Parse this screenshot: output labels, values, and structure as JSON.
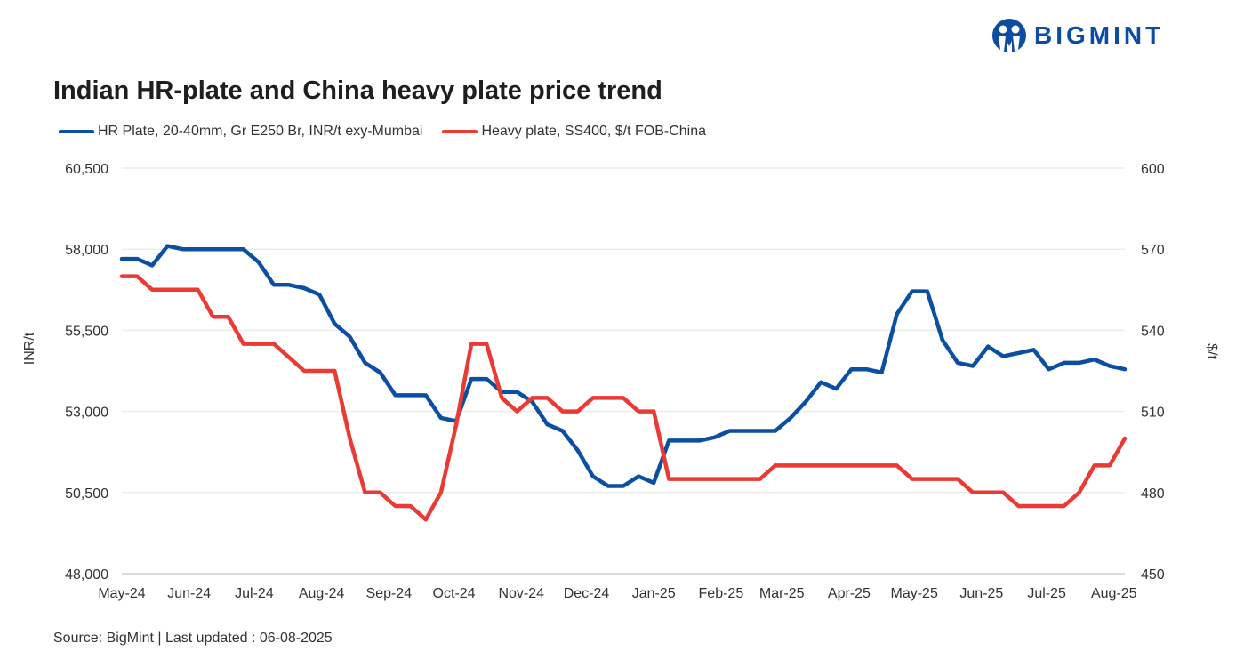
{
  "brand": {
    "name": "BIGMINT",
    "color": "#0b4da2"
  },
  "footer": {
    "source": "Source: BigMint | Last updated : 06-08-2025"
  },
  "chart_data": {
    "type": "line",
    "title": "Indian HR-plate and China heavy plate price trend",
    "ylabel_left": "INR/t",
    "ylabel_right": "$/t",
    "ylim_left": [
      48000,
      60500
    ],
    "ylim_right": [
      450,
      600
    ],
    "yticks_left": [
      "48,000",
      "50,500",
      "53,000",
      "55,500",
      "58,000",
      "60,500"
    ],
    "yticks_right": [
      "450",
      "480",
      "510",
      "540",
      "570",
      "600"
    ],
    "xticks": [
      {
        "date": "2024-05-01",
        "label": "May-24"
      },
      {
        "date": "2024-06-01",
        "label": "Jun-24"
      },
      {
        "date": "2024-07-01",
        "label": "Jul-24"
      },
      {
        "date": "2024-08-01",
        "label": "Aug-24"
      },
      {
        "date": "2024-09-01",
        "label": "Sep-24"
      },
      {
        "date": "2024-10-01",
        "label": "Oct-24"
      },
      {
        "date": "2024-11-01",
        "label": "Nov-24"
      },
      {
        "date": "2024-12-01",
        "label": "Dec-24"
      },
      {
        "date": "2025-01-01",
        "label": "Jan-25"
      },
      {
        "date": "2025-02-01",
        "label": "Feb-25"
      },
      {
        "date": "2025-03-01",
        "label": "Mar-25"
      },
      {
        "date": "2025-04-01",
        "label": "Apr-25"
      },
      {
        "date": "2025-05-01",
        "label": "May-25"
      },
      {
        "date": "2025-06-01",
        "label": "Jun-25"
      },
      {
        "date": "2025-07-01",
        "label": "Jul-25"
      },
      {
        "date": "2025-08-01",
        "label": "Aug-25"
      }
    ],
    "grid": true,
    "legend_position": "top-left",
    "x": [
      "2024-05-01",
      "2024-05-08",
      "2024-05-15",
      "2024-05-22",
      "2024-05-29",
      "2024-06-05",
      "2024-06-12",
      "2024-06-19",
      "2024-06-26",
      "2024-07-03",
      "2024-07-10",
      "2024-07-17",
      "2024-07-24",
      "2024-07-31",
      "2024-08-07",
      "2024-08-14",
      "2024-08-21",
      "2024-08-28",
      "2024-09-04",
      "2024-09-11",
      "2024-09-18",
      "2024-09-25",
      "2024-10-02",
      "2024-10-09",
      "2024-10-16",
      "2024-10-23",
      "2024-10-30",
      "2024-11-06",
      "2024-11-13",
      "2024-11-20",
      "2024-11-27",
      "2024-12-04",
      "2024-12-11",
      "2024-12-18",
      "2024-12-25",
      "2025-01-01",
      "2025-01-08",
      "2025-01-15",
      "2025-01-22",
      "2025-01-29",
      "2025-02-05",
      "2025-02-12",
      "2025-02-19",
      "2025-02-26",
      "2025-03-05",
      "2025-03-12",
      "2025-03-19",
      "2025-03-26",
      "2025-04-02",
      "2025-04-09",
      "2025-04-16",
      "2025-04-23",
      "2025-04-30",
      "2025-05-07",
      "2025-05-14",
      "2025-05-21",
      "2025-05-28",
      "2025-06-04",
      "2025-06-11",
      "2025-06-18",
      "2025-06-25",
      "2025-07-02",
      "2025-07-09",
      "2025-07-16",
      "2025-07-23",
      "2025-07-30",
      "2025-08-06"
    ],
    "series": [
      {
        "name": "HR Plate, 20-40mm, Gr E250 Br, INR/t exy-Mumbai",
        "axis": "left",
        "color": "#0b4fa3",
        "values": [
          57700,
          57700,
          57500,
          58100,
          58000,
          58000,
          58000,
          58000,
          58000,
          57600,
          56900,
          56900,
          56800,
          56600,
          55700,
          55300,
          54500,
          54200,
          53500,
          53500,
          53500,
          52800,
          52700,
          54000,
          54000,
          53600,
          53600,
          53300,
          52600,
          52400,
          51800,
          51000,
          50700,
          50700,
          51000,
          50800,
          52100,
          52100,
          52100,
          52200,
          52400,
          52400,
          52400,
          52400,
          52800,
          53300,
          53900,
          53700,
          54300,
          54300,
          54200,
          56000,
          56700,
          56700,
          55200,
          54500,
          54400,
          55000,
          54700,
          54800,
          54900,
          54300,
          54500,
          54500,
          54600,
          54400,
          54300
        ]
      },
      {
        "name": "Heavy plate, SS400, $/t FOB-China",
        "axis": "right",
        "color": "#eb3a34",
        "values": [
          560,
          560,
          555,
          555,
          555,
          555,
          545,
          545,
          535,
          535,
          535,
          530,
          525,
          525,
          525,
          500,
          480,
          480,
          475,
          475,
          470,
          480,
          505,
          535,
          535,
          515,
          510,
          515,
          515,
          510,
          510,
          515,
          515,
          515,
          510,
          510,
          485,
          485,
          485,
          485,
          485,
          485,
          485,
          490,
          490,
          490,
          490,
          490,
          490,
          490,
          490,
          490,
          485,
          485,
          485,
          485,
          480,
          480,
          480,
          475,
          475,
          475,
          475,
          480,
          490,
          490,
          500
        ]
      }
    ]
  }
}
